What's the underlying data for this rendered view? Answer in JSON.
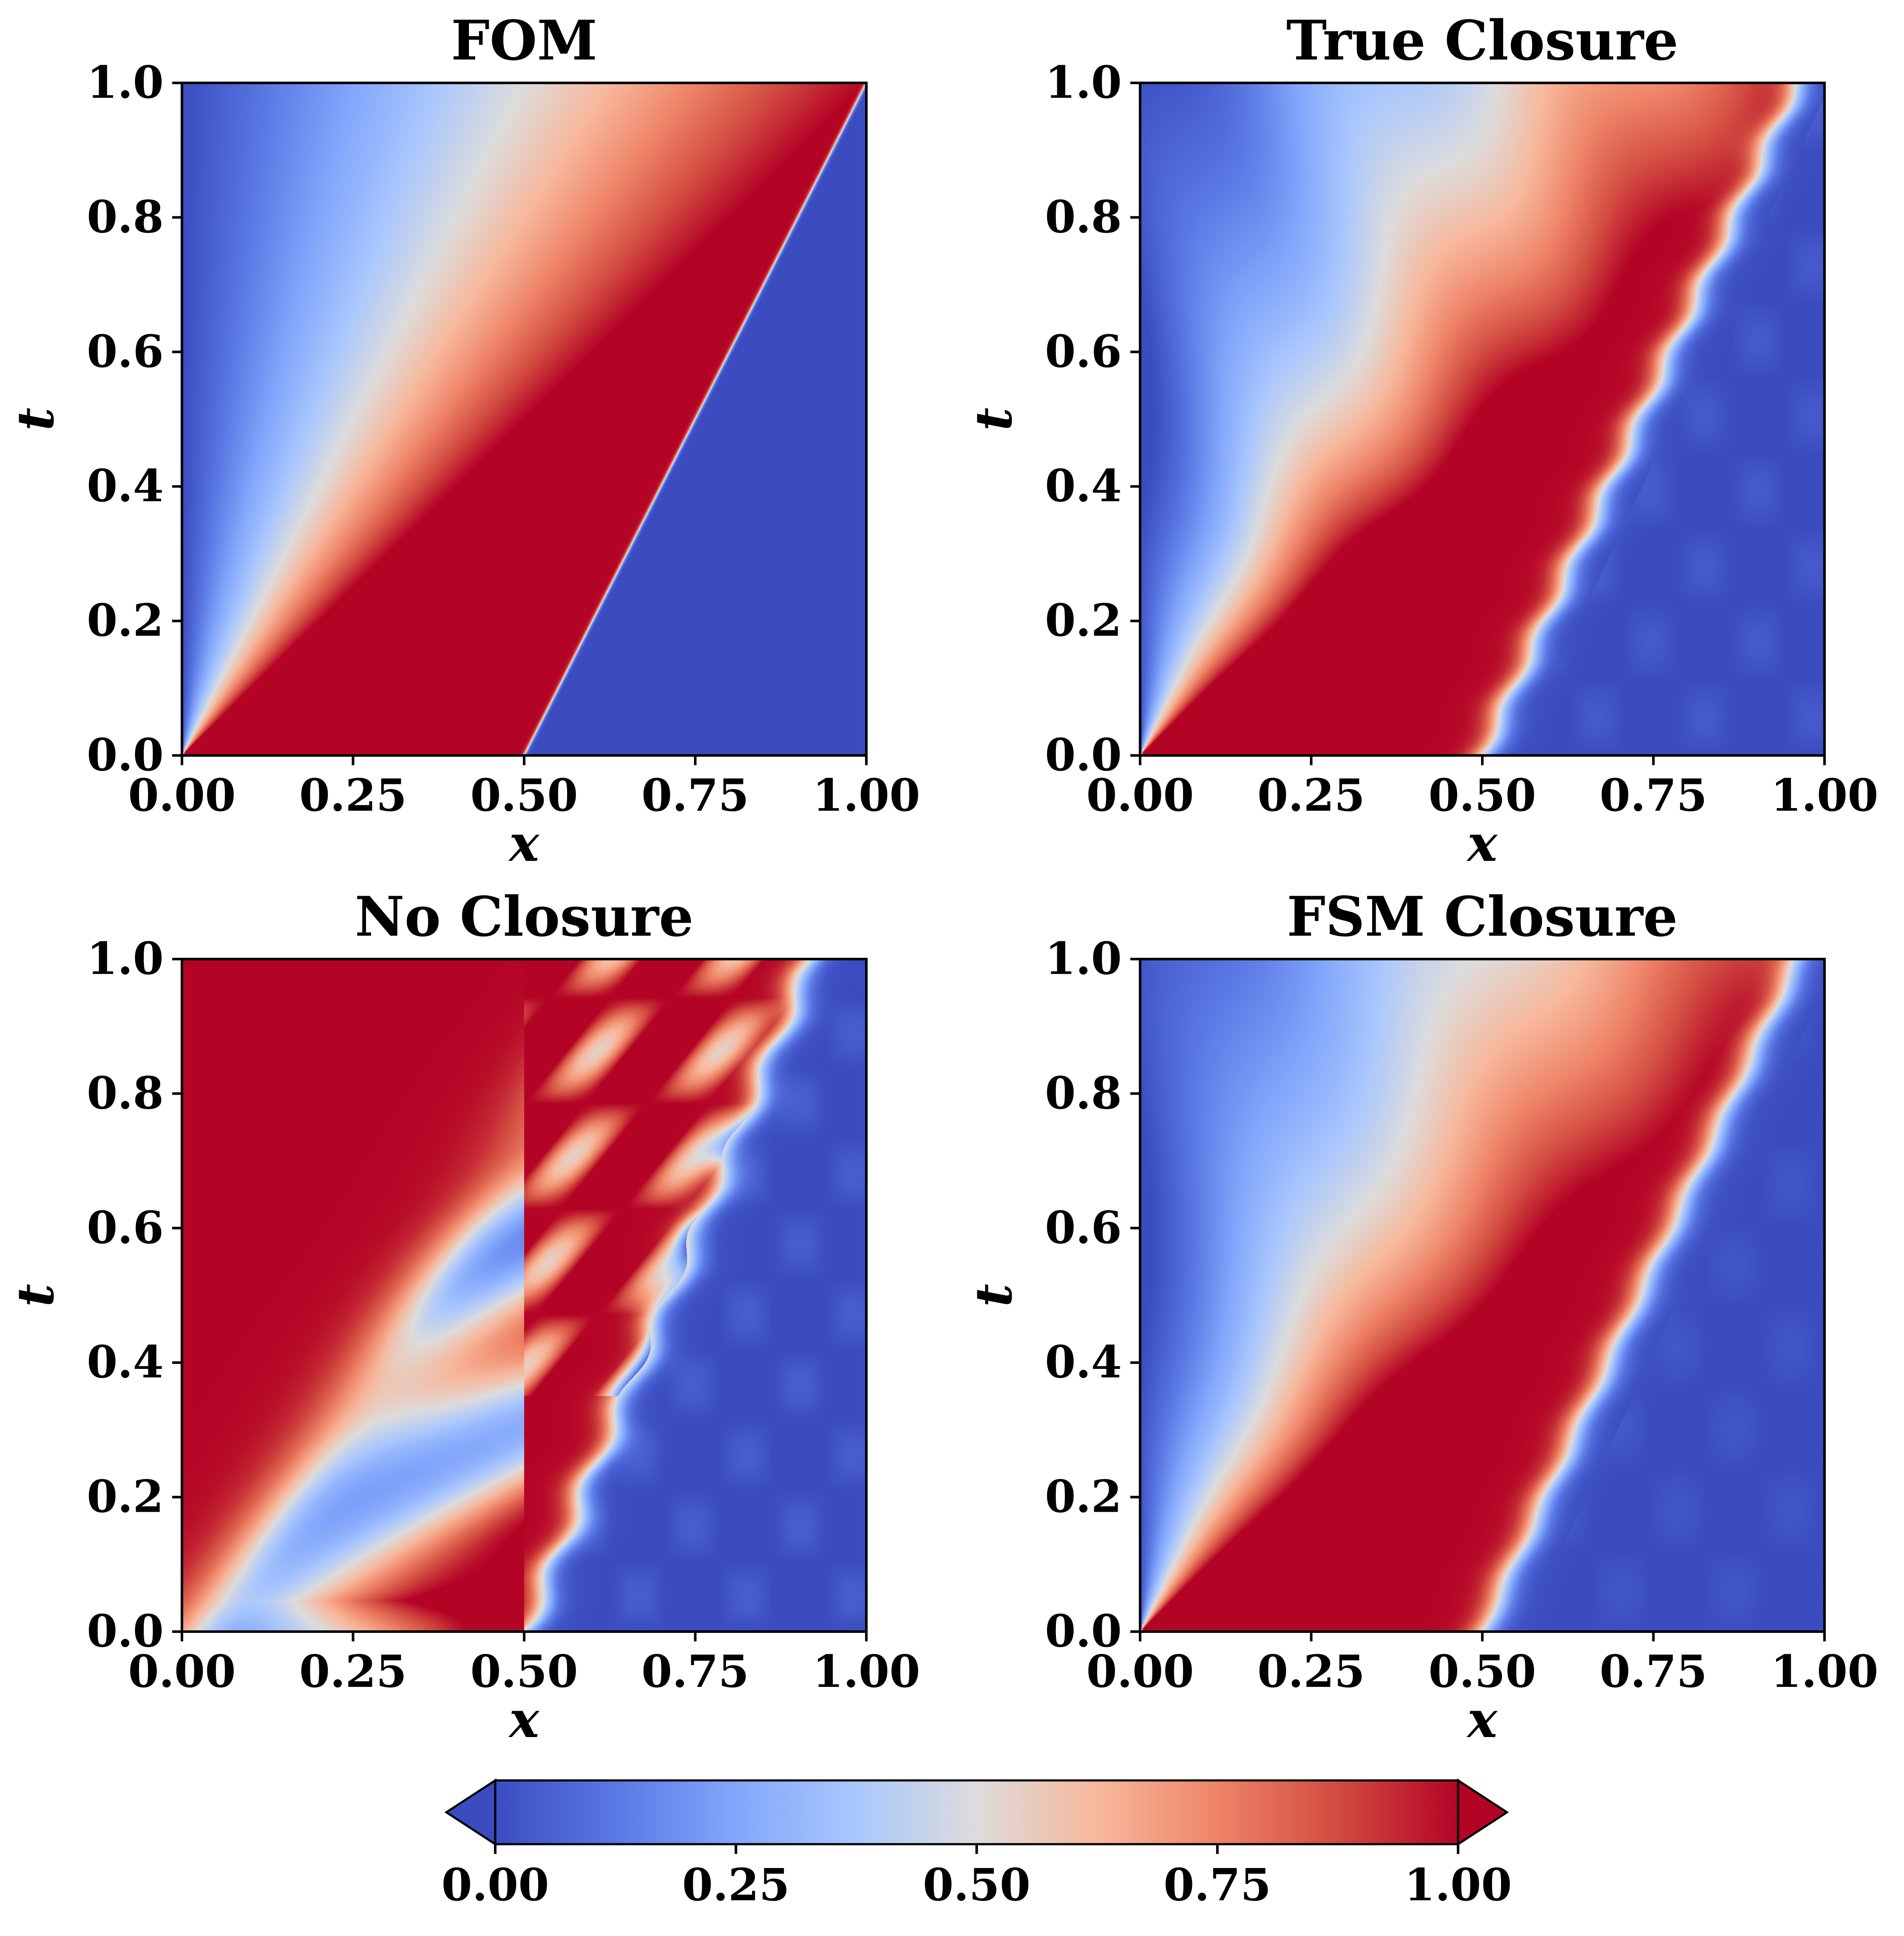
{
  "chart_data": [
    {
      "type": "heatmap",
      "title": "FOM",
      "xlabel": "x",
      "ylabel": "t",
      "xlim": [
        0,
        1
      ],
      "ylim": [
        0,
        1
      ],
      "xticks": [
        "0.00",
        "0.25",
        "0.50",
        "0.75",
        "1.00"
      ],
      "yticks": [
        "0.0",
        "0.2",
        "0.4",
        "0.6",
        "0.8",
        "1.0"
      ],
      "field": "fom"
    },
    {
      "type": "heatmap",
      "title": "True Closure",
      "xlabel": "x",
      "ylabel": "t",
      "xlim": [
        0,
        1
      ],
      "ylim": [
        0,
        1
      ],
      "xticks": [
        "0.00",
        "0.25",
        "0.50",
        "0.75",
        "1.00"
      ],
      "yticks": [
        "0.0",
        "0.2",
        "0.4",
        "0.6",
        "0.8",
        "1.0"
      ],
      "field": "true"
    },
    {
      "type": "heatmap",
      "title": "No Closure",
      "xlabel": "x",
      "ylabel": "t",
      "xlim": [
        0,
        1
      ],
      "ylim": [
        0,
        1
      ],
      "xticks": [
        "0.00",
        "0.25",
        "0.50",
        "0.75",
        "1.00"
      ],
      "yticks": [
        "0.0",
        "0.2",
        "0.4",
        "0.6",
        "0.8",
        "1.0"
      ],
      "field": "none"
    },
    {
      "type": "heatmap",
      "title": "FSM Closure",
      "xlabel": "x",
      "ylabel": "t",
      "xlim": [
        0,
        1
      ],
      "ylim": [
        0,
        1
      ],
      "xticks": [
        "0.00",
        "0.25",
        "0.50",
        "0.75",
        "1.00"
      ],
      "yticks": [
        "0.0",
        "0.2",
        "0.4",
        "0.6",
        "0.8",
        "1.0"
      ],
      "field": "fsm"
    }
  ],
  "colorbar": {
    "colormap": "coolwarm",
    "range": [
      0,
      1
    ],
    "ticks": [
      "0.00",
      "0.25",
      "0.50",
      "0.75",
      "1.00"
    ],
    "extend": "both",
    "min_color": "#3b4cc0",
    "max_color": "#b40426"
  }
}
